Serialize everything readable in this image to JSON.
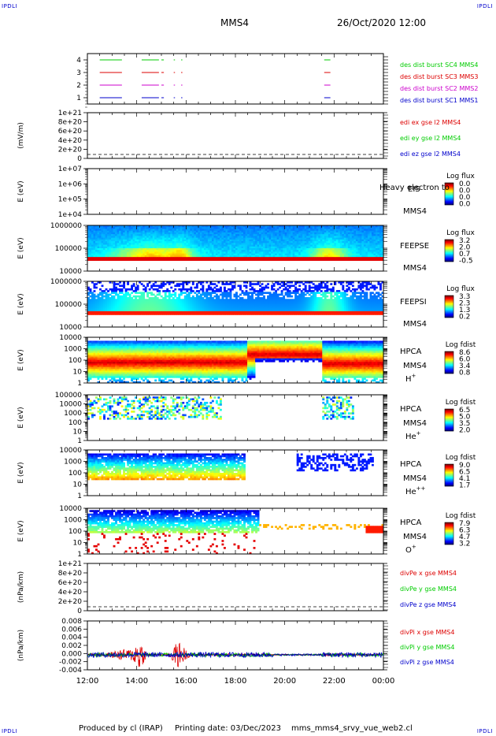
{
  "header": {
    "corner_tl": "IPDLI",
    "corner_tr": "IPDLI",
    "corner_bl": "IPDLI",
    "corner_br": "IPDLI",
    "spacecraft": "MMS4",
    "datetime": "26/Oct/2020 12:00"
  },
  "footer": {
    "produced": "Produced by cl (IRAP)",
    "printing": "Printing date: 03/Dec/2023",
    "script": "mms_mms4_srvy_vue_web2.cl"
  },
  "colors": {
    "red": "#dd0000",
    "green": "#00cc00",
    "blue": "#0000cc",
    "magenta": "#cc00cc"
  },
  "chart_data": [
    {
      "type": "line",
      "id": "burst",
      "ylabel": "",
      "yticks": [
        "4",
        "3",
        "2",
        "1"
      ],
      "x": [
        "12:00",
        "14:00",
        "16:00",
        "18:00",
        "20:00",
        "22:00",
        "00:00"
      ],
      "series": [
        {
          "name": "des dist burst SC1 MMS1",
          "color": "#0000cc",
          "level": 1
        },
        {
          "name": "des dist burst SC2 MMS2",
          "color": "#cc00cc",
          "level": 2
        },
        {
          "name": "des dist burst SC3 MMS3",
          "color": "#dd0000",
          "level": 3
        },
        {
          "name": "des dist burst SC4 MMS4",
          "color": "#00cc00",
          "level": 4
        }
      ],
      "segments_hours": [
        [
          12.5,
          13.4
        ],
        [
          14.2,
          14.9
        ],
        [
          15.0,
          15.1
        ],
        [
          15.5,
          15.55
        ],
        [
          15.8,
          15.85
        ],
        [
          21.6,
          21.85
        ]
      ]
    },
    {
      "type": "line",
      "id": "edi",
      "ylabel": "(mV/m)",
      "yticks": [
        "1e+21",
        "8e+20",
        "6e+20",
        "4e+20",
        "2e+20",
        "0"
      ],
      "series": [
        {
          "name": "edi ex gse l2 MMS4",
          "color": "#dd0000"
        },
        {
          "name": "edi ey gse l2 MMS4",
          "color": "#00cc00"
        },
        {
          "name": "edi ez gse l2 MMS4",
          "color": "#0000cc"
        }
      ]
    },
    {
      "type": "heatmap",
      "id": "eis",
      "ylabel": "E (eV)",
      "yticks": [
        "1e+07",
        "1e+06",
        "1e+05",
        "1e+04"
      ],
      "instrument": "EIS",
      "spacecraft": "MMS4",
      "overlay": "Heavy electron to",
      "colorbar_title": "Log flux",
      "colorbar_values": [
        "0.0",
        "0.0",
        "0.0",
        "0.0"
      ]
    },
    {
      "type": "heatmap",
      "id": "feepse",
      "ylabel": "E (eV)",
      "yticks": [
        "1000000",
        "100000",
        "10000"
      ],
      "instrument": "FEEPSE",
      "spacecraft": "MMS4",
      "colorbar_title": "Log flux",
      "colorbar_values": [
        "3.2",
        "2.0",
        "0.7",
        "-0.5"
      ]
    },
    {
      "type": "heatmap",
      "id": "feepsi",
      "ylabel": "E (eV)",
      "yticks": [
        "1000000",
        "100000",
        "10000"
      ],
      "instrument": "FEEPSI",
      "spacecraft": "MMS4",
      "colorbar_title": "Log flux",
      "colorbar_values": [
        "3.3",
        "2.3",
        "1.3",
        "0.2"
      ]
    },
    {
      "type": "heatmap",
      "id": "hpca_h",
      "ylabel": "E (eV)",
      "yticks": [
        "10000",
        "1000",
        "100",
        "10",
        "1"
      ],
      "instrument": "HPCA",
      "spacecraft": "MMS4",
      "species": "H",
      "species_sup": "+",
      "colorbar_title": "Log fdist",
      "colorbar_values": [
        "8.6",
        "6.0",
        "3.4",
        "0.8"
      ]
    },
    {
      "type": "heatmap",
      "id": "hpca_he1",
      "ylabel": "E (eV)",
      "yticks": [
        "100000",
        "10000",
        "1000",
        "100",
        "10",
        "1"
      ],
      "instrument": "HPCA",
      "spacecraft": "MMS4",
      "species": "He",
      "species_sup": "+",
      "colorbar_title": "Log fdist",
      "colorbar_values": [
        "6.5",
        "5.0",
        "3.5",
        "2.0"
      ]
    },
    {
      "type": "heatmap",
      "id": "hpca_he2",
      "ylabel": "E (eV)",
      "yticks": [
        "10000",
        "1000",
        "100",
        "10",
        "1"
      ],
      "instrument": "HPCA",
      "spacecraft": "MMS4",
      "species": "He",
      "species_sup": "++",
      "colorbar_title": "Log fdist",
      "colorbar_values": [
        "9.0",
        "6.5",
        "4.1",
        "1.7"
      ]
    },
    {
      "type": "heatmap",
      "id": "hpca_o",
      "ylabel": "E (eV)",
      "yticks": [
        "10000",
        "1000",
        "100",
        "10",
        "1"
      ],
      "instrument": "HPCA",
      "spacecraft": "MMS4",
      "species": "O",
      "species_sup": "+",
      "colorbar_title": "Log fdist",
      "colorbar_values": [
        "7.9",
        "6.3",
        "4.7",
        "3.2"
      ]
    },
    {
      "type": "line",
      "id": "divpe",
      "ylabel": "(nPa/km)",
      "yticks": [
        "1e+21",
        "8e+20",
        "6e+20",
        "4e+20",
        "2e+20",
        "0"
      ],
      "series": [
        {
          "name": "divPe x gse MMS4",
          "color": "#dd0000"
        },
        {
          "name": "divPe y gse MMS4",
          "color": "#00cc00"
        },
        {
          "name": "divPe z gse MMS4",
          "color": "#0000cc"
        }
      ]
    },
    {
      "type": "line",
      "id": "divpi",
      "ylabel": "(nPa/km)",
      "yticks": [
        "0.008",
        "0.006",
        "0.004",
        "0.002",
        "0.000",
        "-0.002",
        "-0.004"
      ],
      "ylim": [
        -0.004,
        0.009
      ],
      "series": [
        {
          "name": "divPi x gse MMS4",
          "color": "#dd0000"
        },
        {
          "name": "divPi y gse MMS4",
          "color": "#00cc00"
        },
        {
          "name": "divPi z gse MMS4",
          "color": "#0000cc"
        }
      ],
      "xticks": [
        "12:00",
        "14:00",
        "16:00",
        "18:00",
        "20:00",
        "22:00",
        "00:00"
      ]
    }
  ]
}
